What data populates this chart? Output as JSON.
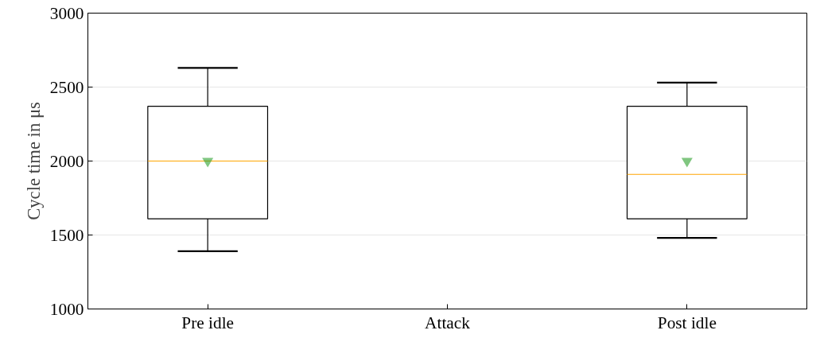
{
  "chart_data": {
    "type": "box",
    "ylabel": "Cycle time in μs",
    "categories": [
      "Pre idle",
      "Attack",
      "Post idle"
    ],
    "boxes": [
      {
        "low": 1390,
        "q1": 1610,
        "median": 2000,
        "q3": 2370,
        "high": 2630,
        "mean": 2000
      },
      null,
      {
        "low": 1480,
        "q1": 1610,
        "median": 1910,
        "q3": 2370,
        "high": 2530,
        "mean": 2000
      }
    ],
    "ylim": [
      1000,
      3000
    ],
    "yticks": [
      1000,
      1500,
      2000,
      2500,
      3000
    ],
    "grid": "y",
    "marker": "triangle"
  }
}
